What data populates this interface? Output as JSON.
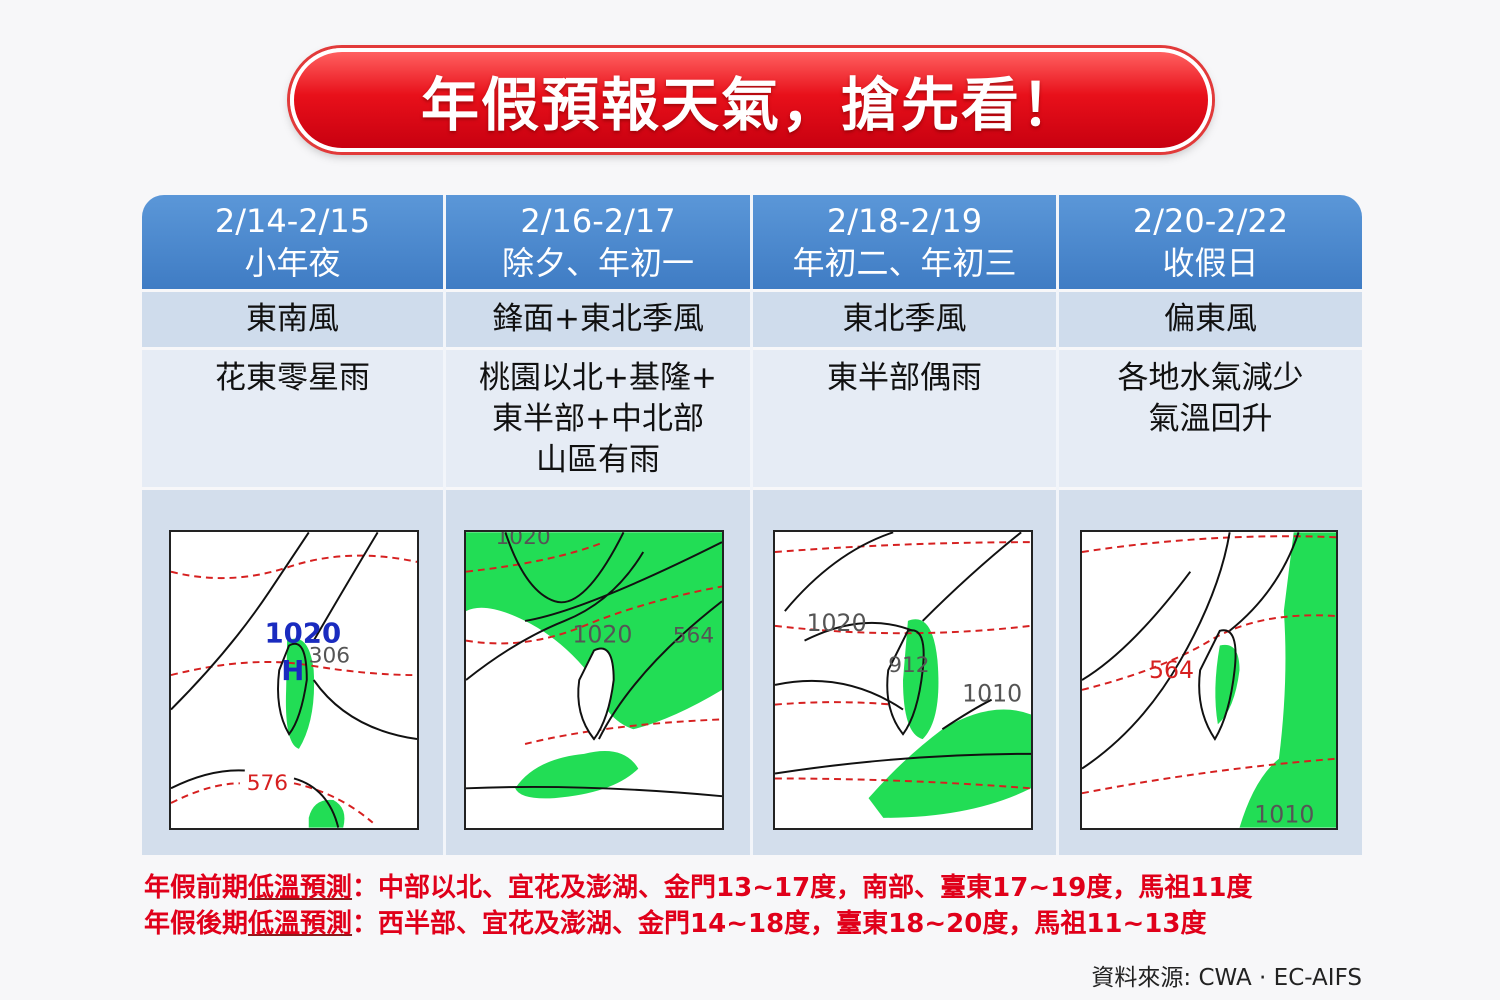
{
  "title": "年假預報天氣，搶先看！",
  "columns": [
    {
      "date": "2/14-2/15",
      "holiday": "小年夜",
      "wind": "東南風",
      "weather": [
        "花東零星雨"
      ],
      "map_labels": {
        "a": "1020",
        "b": "H",
        "c": "306",
        "d": "576"
      }
    },
    {
      "date": "2/16-2/17",
      "holiday": "除夕、年初一",
      "wind": "鋒面+東北季風",
      "weather": [
        "桃園以北+基隆+",
        "東半部+中北部",
        "山區有雨"
      ],
      "map_labels": {
        "a": "1020",
        "b": "1020",
        "c": "564"
      }
    },
    {
      "date": "2/18-2/19",
      "holiday": "年初二、年初三",
      "wind": "東北季風",
      "weather": [
        "東半部偶雨"
      ],
      "map_labels": {
        "a": "1020",
        "b": "912",
        "c": "1010"
      }
    },
    {
      "date": "2/20-2/22",
      "holiday": "收假日",
      "wind": "偏東風",
      "weather": [
        "各地水氣減少",
        "氣溫回升"
      ],
      "map_labels": {
        "a": "564",
        "b": "1010"
      }
    }
  ],
  "notes": [
    {
      "prefix": "年假前期",
      "key": "低溫預測",
      "text": "：中部以北、宜花及澎湖、金門13~17度，南部、臺東17~19度，馬祖11度"
    },
    {
      "prefix": "年假後期",
      "key": "低溫預測",
      "text": "：西半部、宜花及澎湖、金門14~18度，臺東18~20度，馬祖11~13度"
    }
  ],
  "source": "資料來源: CWA · EC-AIFS",
  "colors": {
    "title_red": "#e8101a",
    "header_blue": "#4a86cc",
    "note_red": "#e0001a",
    "rain_green": "#22dd55",
    "contour_red": "#d62020"
  }
}
